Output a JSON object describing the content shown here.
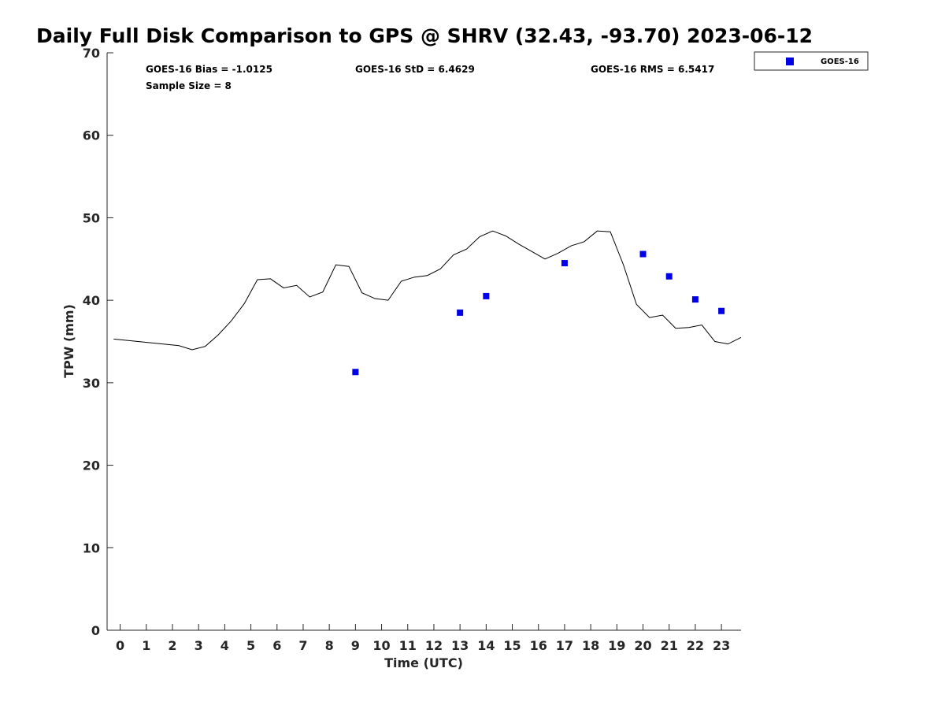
{
  "chart_data": {
    "type": "line",
    "title": "Daily Full Disk Comparison to GPS @ SHRV (32.43, -93.70) 2023-06-12",
    "xlabel": "Time (UTC)",
    "ylabel": "TPW (mm)",
    "xlim": [
      -0.5,
      23.75
    ],
    "ylim": [
      0,
      70
    ],
    "x_ticks": [
      "0",
      "1",
      "2",
      "3",
      "4",
      "5",
      "6",
      "7",
      "8",
      "9",
      "10",
      "11",
      "12",
      "13",
      "14",
      "15",
      "16",
      "17",
      "18",
      "19",
      "20",
      "21",
      "22",
      "23"
    ],
    "y_ticks": [
      "0",
      "10",
      "20",
      "30",
      "40",
      "50",
      "60",
      "70"
    ],
    "grid": false,
    "legend_position": "outside-top-right",
    "stats": {
      "bias": "GOES-16 Bias = -1.0125",
      "std": "GOES-16 StD = 6.4629",
      "rms": "GOES-16 RMS = 6.5417",
      "sample": "Sample Size = 8"
    },
    "series": [
      {
        "kind": "line",
        "color": "#000000",
        "x": [
          -0.25,
          2.25,
          2.75,
          3.25,
          3.75,
          4.25,
          4.75,
          5.25,
          5.75,
          6.25,
          6.75,
          7.25,
          7.75,
          8.25,
          8.75,
          9.25,
          9.75,
          10.25,
          10.75,
          11.25,
          11.75,
          12.25,
          12.75,
          13.25,
          13.75,
          14.25,
          14.75,
          15.25,
          15.75,
          16.25,
          16.75,
          17.25,
          17.75,
          18.25,
          18.75,
          19.25,
          19.75,
          20.25,
          20.75,
          21.25,
          21.75,
          22.25,
          22.75,
          23.25,
          23.75
        ],
        "y": [
          35.3,
          34.5,
          34.0,
          34.4,
          35.8,
          37.5,
          39.6,
          42.5,
          42.6,
          41.5,
          41.8,
          40.4,
          41.0,
          44.3,
          44.1,
          40.9,
          40.2,
          40.0,
          42.3,
          42.8,
          43.0,
          43.8,
          45.5,
          46.2,
          47.7,
          48.4,
          47.8,
          46.8,
          45.9,
          45.0,
          45.7,
          46.6,
          47.1,
          48.4,
          48.3,
          44.3,
          39.5,
          37.9,
          38.2,
          36.6,
          36.7,
          37.0,
          35.0,
          34.7,
          35.5
        ]
      },
      {
        "kind": "scatter",
        "name": "GOES-16",
        "color": "#0000e6",
        "x": [
          9,
          13,
          14,
          17,
          20,
          21,
          22,
          23
        ],
        "y": [
          31.3,
          38.5,
          40.5,
          44.5,
          45.6,
          42.9,
          40.1,
          38.7
        ]
      }
    ]
  }
}
